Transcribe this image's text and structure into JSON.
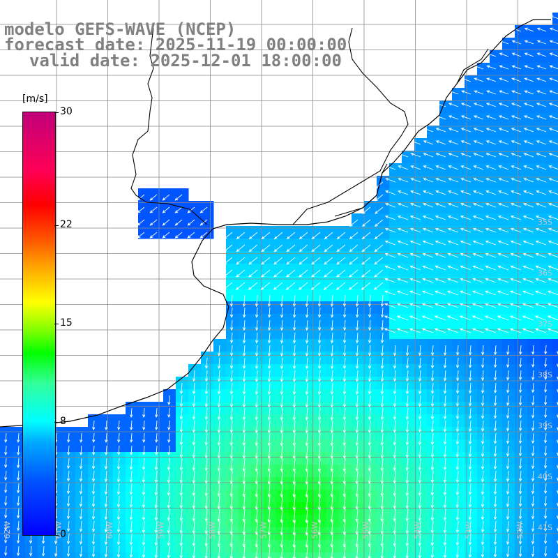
{
  "header": {
    "model_line": "modelo GEFS-WAVE (NCEP)",
    "forecast_line": "forecast date: 2025-11-19 00:00:00",
    "valid_line": "valid date: 2025-12-01 18:00:00"
  },
  "colorbar": {
    "unit": "[m/s]",
    "ticks": [
      "30",
      "22",
      "15",
      "8",
      "0"
    ],
    "tick_values": [
      30,
      22,
      15,
      8,
      0
    ],
    "min": 0,
    "max": 30
  },
  "map": {
    "lat_labels": [
      "35S",
      "36S",
      "37S",
      "38S",
      "39S",
      "40S",
      "41S"
    ],
    "lon_labels": [
      "62W",
      "61W",
      "60W",
      "59W",
      "58W",
      "57W",
      "56W",
      "55W",
      "54W",
      "53W",
      "52W"
    ],
    "colors": {
      "land": "#ffffff",
      "coast": "#000000",
      "grid": "#888888",
      "arrows": "#ffffff"
    }
  }
}
